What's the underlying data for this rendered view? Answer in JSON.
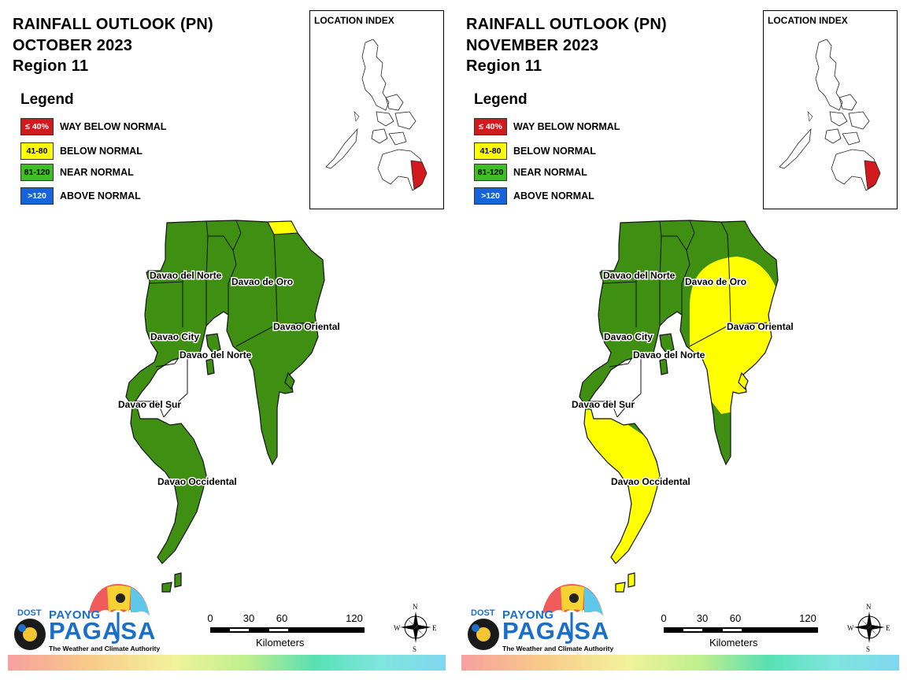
{
  "panels": [
    {
      "title_line1": "RAINFALL OUTLOOK (PN)",
      "title_line2": "OCTOBER 2023",
      "title_line3": "Region 11",
      "legend_title": "Legend",
      "legend": [
        {
          "range": "≤ 40%",
          "label": "WAY BELOW NORMAL",
          "color": "#d2191b",
          "text_color": "#ffffff"
        },
        {
          "range": "41-80",
          "label": "BELOW NORMAL",
          "color": "#ffff00",
          "text_color": "#000000"
        },
        {
          "range": "81-120",
          "label": "NEAR NORMAL",
          "color": "#3fbf23",
          "text_color": "#000000"
        },
        {
          "range": ">120",
          "label": "ABOVE NORMAL",
          "color": "#1763dc",
          "text_color": "#ffffff"
        }
      ],
      "index_title": "LOCATION INDEX",
      "labels": {
        "davao_del_norte_1": "Davao del Norte",
        "davao_de_oro": "Davao de Oro",
        "davao_oriental": "Davao Oriental",
        "davao_city": "Davao City",
        "davao_del_norte_2": "Davao del Norte",
        "davao_del_sur": "Davao del Sur",
        "davao_occidental": "Davao Occidental"
      },
      "outlook": {
        "davao_del_norte": "NEAR NORMAL",
        "davao_de_oro": "NEAR NORMAL",
        "davao_oriental": "NEAR NORMAL",
        "davao_city": "NEAR NORMAL",
        "davao_del_sur": "NEAR NORMAL",
        "davao_occidental": "NEAR NORMAL",
        "northeast_tip": "BELOW NORMAL"
      },
      "scale": {
        "ticks": [
          "0",
          "30",
          "60",
          "120"
        ],
        "unit": "Kilometers"
      },
      "compass": {
        "n": "N",
        "s": "S",
        "e": "E",
        "w": "W"
      },
      "logo": {
        "dost": "DOST",
        "payong": "PAYONG",
        "pagasa": "PAGASA",
        "tagline": "The Weather and Climate Authority"
      }
    },
    {
      "title_line1": "RAINFALL OUTLOOK (PN)",
      "title_line2": "NOVEMBER 2023",
      "title_line3": "Region 11",
      "legend_title": "Legend",
      "legend": [
        {
          "range": "≤ 40%",
          "label": "WAY BELOW NORMAL",
          "color": "#d2191b",
          "text_color": "#ffffff"
        },
        {
          "range": "41-80",
          "label": "BELOW NORMAL",
          "color": "#ffff00",
          "text_color": "#000000"
        },
        {
          "range": "81-120",
          "label": "NEAR NORMAL",
          "color": "#3fbf23",
          "text_color": "#000000"
        },
        {
          "range": ">120",
          "label": "ABOVE NORMAL",
          "color": "#1763dc",
          "text_color": "#ffffff"
        }
      ],
      "index_title": "LOCATION INDEX",
      "labels": {
        "davao_del_norte_1": "Davao del Norte",
        "davao_de_oro": "Davao de Oro",
        "davao_oriental": "Davao Oriental",
        "davao_city": "Davao City",
        "davao_del_norte_2": "Davao del Norte",
        "davao_del_sur": "Davao del Sur",
        "davao_occidental": "Davao Occidental"
      },
      "outlook": {
        "davao_del_norte": "NEAR NORMAL",
        "davao_de_oro": "BELOW NORMAL",
        "davao_oriental": "BELOW NORMAL",
        "davao_city": "NEAR NORMAL",
        "davao_del_sur": "BELOW NORMAL",
        "davao_occidental": "BELOW NORMAL"
      },
      "scale": {
        "ticks": [
          "0",
          "30",
          "60",
          "120"
        ],
        "unit": "Kilometers"
      },
      "compass": {
        "n": "N",
        "s": "S",
        "e": "E",
        "w": "W"
      },
      "logo": {
        "dost": "DOST",
        "payong": "PAYONG",
        "pagasa": "PAGASA",
        "tagline": "The Weather and Climate Authority"
      }
    }
  ],
  "colors": {
    "green": "#3f8f12",
    "yellow": "#ffff00",
    "red_highlight": "#d2191b",
    "umbrella_blue": "#1a6fc9"
  }
}
